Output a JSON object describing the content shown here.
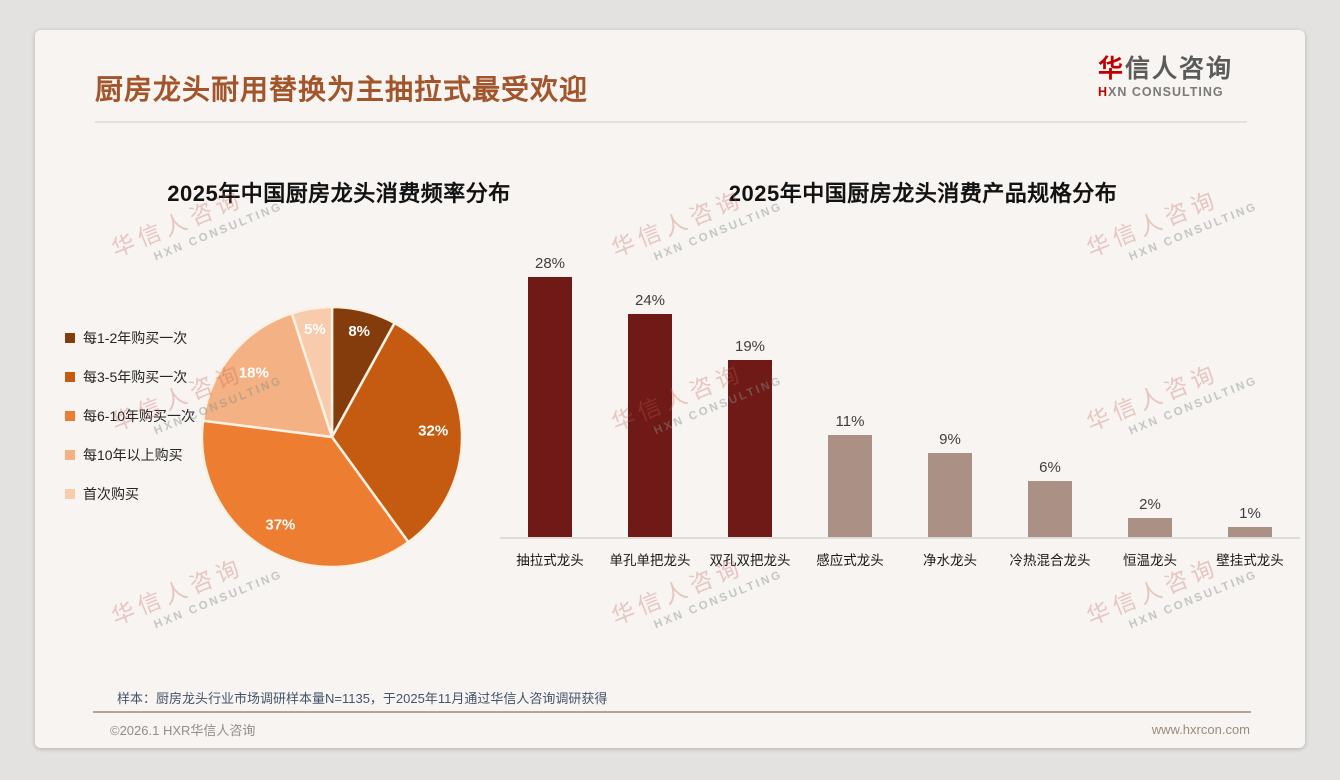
{
  "header": {
    "title": "厨房龙头耐用替换为主抽拉式最受欢迎",
    "logo": {
      "cn_first": "华",
      "cn_rest": "信人咨询",
      "en_first": "H",
      "en_rest": "XN CONSULTING"
    }
  },
  "watermark": {
    "line1": "华信人咨询",
    "line2": "HXN CONSULTING"
  },
  "chart_data": [
    {
      "type": "pie",
      "title": "2025年中国厨房龙头消费频率分布",
      "categories": [
        "每1-2年购买一次",
        "每3-5年购买一次",
        "每6-10年购买一次",
        "每10年以上购买",
        "首次购买"
      ],
      "values": [
        8,
        32,
        37,
        18,
        5
      ],
      "unit": "%",
      "data_labels": [
        "8%",
        "32%",
        "37%",
        "18%",
        "5%"
      ],
      "colors": [
        "#843C0C",
        "#C55A11",
        "#ED7D31",
        "#F4B183",
        "#F8CBAD"
      ],
      "label_color": "#FFFFFF",
      "legend_position": "left",
      "start_angle_deg": 0,
      "direction": "clockwise",
      "slice_border_color": "#FBF2E4"
    },
    {
      "type": "bar",
      "title": "2025年中国厨房龙头消费产品规格分布",
      "categories": [
        "抽拉式龙头",
        "单孔单把龙头",
        "双孔双把龙头",
        "感应式龙头",
        "净水龙头",
        "冷热混合龙头",
        "恒温龙头",
        "壁挂式龙头"
      ],
      "values": [
        28,
        24,
        19,
        11,
        9,
        6,
        2,
        1
      ],
      "unit": "%",
      "data_labels": [
        "28%",
        "24%",
        "19%",
        "11%",
        "9%",
        "6%",
        "2%",
        "1%"
      ],
      "bar_colors": [
        "#701A17",
        "#701A17",
        "#701A17",
        "#AB9086",
        "#AB9086",
        "#AB9086",
        "#AB9086",
        "#AB9086"
      ],
      "ylim": [
        0,
        30
      ],
      "grid": false,
      "y_axis_visible": false,
      "value_label_color": "#3F3F3F",
      "axis_line_color": "#DCDCD9"
    }
  ],
  "footer": {
    "note": "样本：厨房龙头行业市场调研样本量N=1135，于2025年11月通过华信人咨询调研获得",
    "copyright": "©2026.1 HXR华信人咨询",
    "website": "www.hxrcon.com"
  }
}
